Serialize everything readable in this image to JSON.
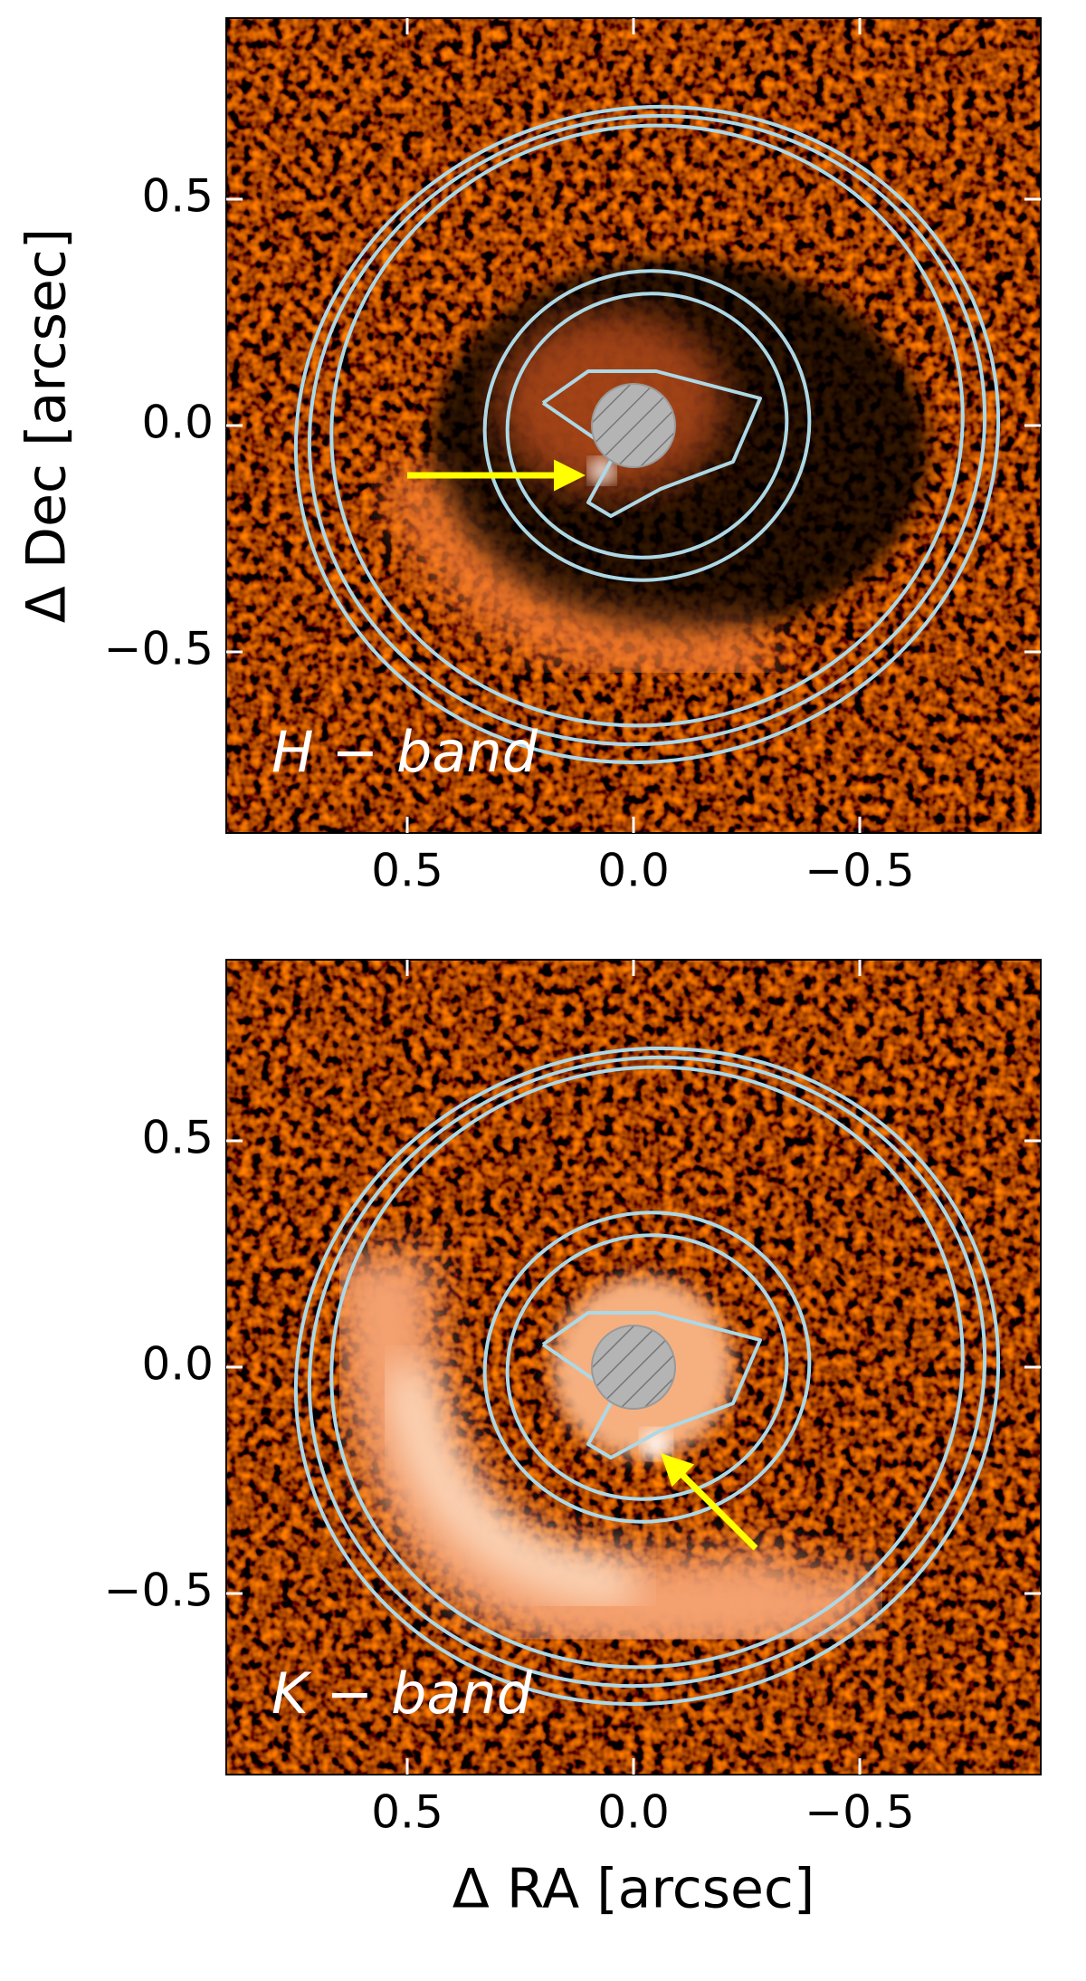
{
  "chart_data": [
    {
      "type": "image",
      "annotation": "H − band",
      "ylabel": "Δ Dec [arcsec]",
      "xlim": [
        0.9,
        -0.9
      ],
      "ylim": [
        -0.9,
        0.9
      ],
      "xticks": [
        0.5,
        {
          "value": 0,
          "label": "0.0"
        },
        {
          "value": -0.5,
          "label": "−0.5"
        }
      ],
      "yticks": [
        0.5,
        {
          "value": 0,
          "label": "0.0"
        },
        {
          "value": -0.5,
          "label": "−0.5"
        }
      ]
    },
    {
      "type": "image",
      "annotation": "K − band",
      "xlabel": "Δ RA [arcsec]",
      "xlim": [
        0.9,
        -0.9
      ],
      "ylim": [
        -0.9,
        0.9
      ],
      "xticks": [
        0.5,
        {
          "value": 0,
          "label": "0.0"
        },
        {
          "value": -0.5,
          "label": "−0.5"
        }
      ],
      "yticks": [
        0.5,
        {
          "value": 0,
          "label": "0.0"
        },
        {
          "value": -0.5,
          "label": "−0.5"
        }
      ]
    }
  ]
}
